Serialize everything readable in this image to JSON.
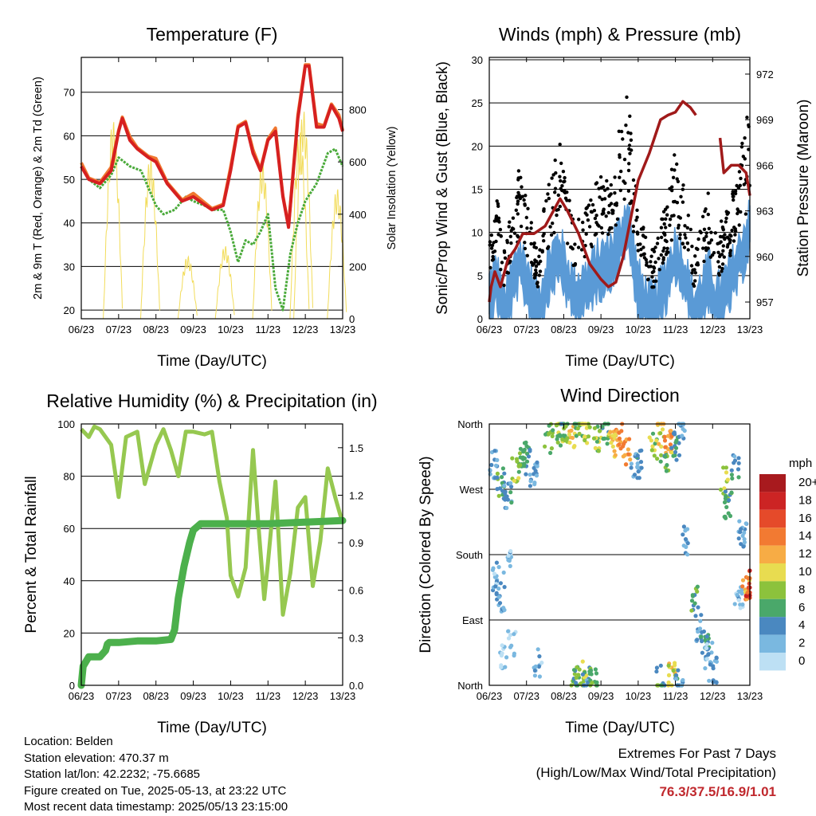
{
  "time_ticks": [
    "06/23",
    "07/23",
    "08/23",
    "09/23",
    "10/23",
    "11/23",
    "12/23",
    "13/23"
  ],
  "x_axis_title": "Time (Day/UTC)",
  "colors": {
    "temp_2m": "#d62020",
    "temp_9m": "#f07830",
    "dewpoint": "#4aaa3a",
    "solar": "#f2dc5a",
    "wind": "#5a9ad6",
    "gust": "#000000",
    "pressure": "#a01a1a",
    "rh": "#96c850",
    "precip": "#4cb04c"
  },
  "chart_data": [
    {
      "id": "temperature",
      "type": "line",
      "title": "Temperature (F)",
      "xlabel": "Time (Day/UTC)",
      "ylabel": "2m & 9m T (Red, Orange) & 2m Td (Green)",
      "y2label": "Solar Insolation (Yellow)",
      "x_ticks": [
        "06/23",
        "07/23",
        "08/23",
        "09/23",
        "10/23",
        "11/23",
        "12/23",
        "13/23"
      ],
      "ylim": [
        18,
        78
      ],
      "y_ticks": [
        20,
        30,
        40,
        50,
        60,
        70
      ],
      "y2lim": [
        0,
        1000
      ],
      "y2_ticks": [
        0,
        200,
        400,
        600,
        800
      ],
      "series": [
        {
          "key": "temp",
          "x": [
            6,
            6.2,
            6.5,
            6.8,
            7,
            7.1,
            7.3,
            7.5,
            7.8,
            8,
            8.3,
            8.7,
            9,
            9.5,
            9.8,
            10,
            10.2,
            10.4,
            10.6,
            10.8,
            11,
            11.2,
            11.4,
            11.55,
            11.8,
            12,
            12.1,
            12.3,
            12.5,
            12.7,
            12.9,
            13
          ],
          "y": [
            53,
            50,
            49,
            52,
            61,
            64,
            59,
            57,
            55,
            54,
            49,
            45,
            46,
            43,
            44,
            52,
            62,
            63,
            56,
            52,
            59,
            61,
            46,
            39,
            64,
            76,
            76,
            62,
            62,
            67,
            64,
            61
          ]
        },
        {
          "key": "dew",
          "x": [
            6,
            6.2,
            6.5,
            6.8,
            7,
            7.3,
            7.6,
            8,
            8.2,
            8.5,
            8.8,
            9,
            9.3,
            9.5,
            9.8,
            10,
            10.2,
            10.4,
            10.6,
            10.8,
            11,
            11.2,
            11.4,
            11.6,
            11.8,
            12,
            12.3,
            12.6,
            12.8,
            13
          ],
          "y": [
            53,
            50,
            48,
            51,
            55,
            53,
            52,
            44,
            42,
            43,
            46,
            45,
            44,
            43,
            43,
            38,
            31,
            36,
            35,
            38,
            42,
            25,
            20,
            33,
            40,
            45,
            49,
            56,
            57,
            53
          ]
        },
        {
          "key": "solar",
          "peaks": [
            6.85,
            7.85,
            8.85,
            9.85,
            10.85,
            11.85,
            12.85
          ],
          "heights": [
            760,
            620,
            240,
            280,
            600,
            720,
            500
          ],
          "extra_peak": [
            11.95,
            800
          ]
        }
      ]
    },
    {
      "id": "winds",
      "type": "scatter",
      "title": "Winds (mph) & Pressure (mb)",
      "xlabel": "Time (Day/UTC)",
      "ylabel": "Sonic/Prop Wind & Gust (Blue, Black)",
      "y2label": "Station Pressure (Maroon)",
      "x_ticks": [
        "06/23",
        "07/23",
        "08/23",
        "09/23",
        "10/23",
        "11/23",
        "12/23",
        "13/23"
      ],
      "ylim": [
        0,
        30
      ],
      "y_ticks": [
        0,
        5,
        10,
        15,
        20,
        25,
        30
      ],
      "y2lim": [
        955.9,
        973.1
      ],
      "y2_ticks": [
        957,
        960,
        963,
        966,
        969,
        972
      ],
      "series": [
        {
          "key": "wind_profile",
          "x": [
            6,
            6.2,
            6.4,
            6.6,
            6.8,
            7,
            7.3,
            7.6,
            7.9,
            8.1,
            8.3,
            8.6,
            8.9,
            9.2,
            9.5,
            9.7,
            9.85,
            10,
            10.2,
            10.4,
            10.6,
            10.8,
            11,
            11.2,
            11.5,
            11.7,
            11.9,
            12.1,
            12.4,
            12.7,
            13
          ],
          "y": [
            4,
            6,
            2,
            5,
            8,
            6,
            2,
            7,
            9,
            6,
            4,
            5,
            7,
            8,
            10,
            13,
            9,
            5,
            3,
            2,
            4,
            6,
            9,
            7,
            2,
            4,
            6,
            3,
            5,
            8,
            12
          ]
        },
        {
          "key": "pressure",
          "x": [
            6,
            6.05,
            6.15,
            6.3,
            6.5,
            6.7,
            6.9,
            7.2,
            7.5,
            7.9,
            8.1,
            8.4,
            8.7,
            9,
            9.2,
            9.4,
            9.6,
            9.8,
            10,
            10.3,
            10.6,
            10.8,
            11,
            11.2,
            11.4,
            11.55
          ],
          "y": [
            957,
            958,
            959,
            958,
            959.8,
            960.5,
            961.5,
            961.5,
            962,
            963.8,
            963,
            961.5,
            959.5,
            958.5,
            958,
            958.3,
            960,
            962.5,
            965,
            966.8,
            969,
            969.3,
            969.5,
            970.2,
            969.8,
            969.3
          ]
        },
        {
          "key": "pressure_2",
          "x": [
            12.2,
            12.3,
            12.5,
            12.7,
            12.9,
            13
          ],
          "y": [
            967.8,
            965.5,
            966,
            966,
            965.5,
            964
          ]
        }
      ]
    },
    {
      "id": "humidity",
      "type": "line",
      "title": "Relative Humidity (%) & Precipitation (in)",
      "xlabel": "Time (Day/UTC)",
      "ylabel": "Percent & Total Rainfall",
      "x_ticks": [
        "06/23",
        "07/23",
        "08/23",
        "09/23",
        "10/23",
        "11/23",
        "12/23",
        "13/23"
      ],
      "ylim": [
        0,
        100
      ],
      "y_ticks": [
        0,
        20,
        40,
        60,
        80,
        100
      ],
      "y2lim": [
        0,
        1.65
      ],
      "y2_ticks": [
        "0.0",
        "0.3",
        "0.6",
        "0.9",
        "1.2",
        "1.5"
      ],
      "series": [
        {
          "key": "rh",
          "x": [
            6,
            6.2,
            6.35,
            6.5,
            6.8,
            7,
            7.2,
            7.5,
            7.7,
            8,
            8.2,
            8.4,
            8.6,
            8.8,
            9,
            9.3,
            9.5,
            9.7,
            9.9,
            10,
            10.2,
            10.4,
            10.6,
            10.75,
            10.9,
            11,
            11.2,
            11.4,
            11.6,
            11.8,
            12,
            12.2,
            12.4,
            12.6,
            12.8,
            13
          ],
          "y": [
            98,
            95,
            99,
            98,
            92,
            72,
            95,
            97,
            77,
            92,
            98,
            90,
            80,
            97,
            97,
            96,
            97,
            78,
            64,
            42,
            34,
            45,
            90,
            60,
            33,
            47,
            78,
            27,
            43,
            68,
            72,
            38,
            55,
            83,
            72,
            62
          ]
        },
        {
          "key": "precip",
          "x": [
            6,
            6.05,
            6.1,
            6.2,
            6.5,
            6.65,
            6.7,
            6.75,
            7,
            7.5,
            8,
            8.4,
            8.5,
            8.6,
            8.75,
            8.9,
            9,
            9.1,
            9.2,
            9.4,
            10,
            11,
            12,
            13
          ],
          "y": [
            0,
            0.12,
            0.14,
            0.18,
            0.18,
            0.22,
            0.26,
            0.27,
            0.27,
            0.28,
            0.28,
            0.29,
            0.35,
            0.55,
            0.75,
            0.9,
            0.98,
            1.0,
            1.02,
            1.02,
            1.02,
            1.02,
            1.03,
            1.04
          ]
        }
      ]
    },
    {
      "id": "wind_direction",
      "type": "scatter",
      "title": "Wind Direction",
      "xlabel": "Time (Day/UTC)",
      "ylabel": "Direction (Colored By Speed)",
      "x_ticks": [
        "06/23",
        "07/23",
        "08/23",
        "09/23",
        "10/23",
        "11/23",
        "12/23",
        "13/23"
      ],
      "y_ticks": [
        "North",
        "East",
        "South",
        "West",
        "North"
      ],
      "ylim": [
        0,
        360
      ],
      "colorbar": {
        "unit": "mph",
        "labels": [
          "20+",
          "18",
          "16",
          "14",
          "12",
          "10",
          "8",
          "6",
          "4",
          "2",
          "0"
        ],
        "colors": [
          "#a81a1e",
          "#cc2424",
          "#e54a2a",
          "#f27a32",
          "#f7ac45",
          "#e8dc50",
          "#8cc23c",
          "#4aa86a",
          "#4a88c0",
          "#7ab8e0",
          "#bde0f4"
        ]
      },
      "series": [
        {
          "key": "clusters",
          "points": [
            [
              6.1,
              305,
              3
            ],
            [
              6.3,
              280,
              6
            ],
            [
              6.5,
              260,
              4
            ],
            [
              6.7,
              300,
              8
            ],
            [
              6.9,
              320,
              7
            ],
            [
              7.0,
              310,
              5
            ],
            [
              7.2,
              290,
              3
            ],
            [
              6.2,
              150,
              2
            ],
            [
              6.3,
              120,
              3
            ],
            [
              6.5,
              170,
              2
            ],
            [
              6.4,
              40,
              1
            ],
            [
              6.6,
              60,
              1
            ],
            [
              7.3,
              30,
              2
            ],
            [
              7.6,
              340,
              7
            ],
            [
              7.9,
              350,
              8
            ],
            [
              8.0,
              355,
              6
            ],
            [
              8.2,
              345,
              10
            ],
            [
              8.4,
              360,
              7
            ],
            [
              8.6,
              352,
              9
            ],
            [
              8.9,
              340,
              8
            ],
            [
              9.1,
              350,
              6
            ],
            [
              9.3,
              330,
              11
            ],
            [
              9.5,
              345,
              13
            ],
            [
              9.7,
              320,
              12
            ],
            [
              9.9,
              300,
              4
            ],
            [
              10.0,
              305,
              3
            ],
            [
              10.4,
              330,
              8
            ],
            [
              10.6,
              348,
              10
            ],
            [
              10.8,
              340,
              12
            ],
            [
              10.7,
              310,
              6
            ],
            [
              11.0,
              330,
              5
            ],
            [
              11.2,
              360,
              3
            ],
            [
              8.3,
              10,
              6
            ],
            [
              8.5,
              15,
              9
            ],
            [
              8.6,
              8,
              4
            ],
            [
              8.8,
              5,
              7
            ],
            [
              10.6,
              8,
              6
            ],
            [
              10.9,
              12,
              10
            ],
            [
              11.1,
              5,
              4
            ],
            [
              11.3,
              200,
              3
            ],
            [
              11.5,
              120,
              6
            ],
            [
              11.6,
              80,
              3
            ],
            [
              11.8,
              60,
              5
            ],
            [
              11.9,
              40,
              2
            ],
            [
              12.0,
              20,
              3
            ],
            [
              12.3,
              280,
              9
            ],
            [
              12.4,
              250,
              6
            ],
            [
              12.6,
              300,
              4
            ],
            [
              12.8,
              210,
              3
            ],
            [
              12.7,
              120,
              2
            ],
            [
              12.9,
              130,
              12
            ],
            [
              13.0,
              140,
              16
            ]
          ]
        }
      ]
    }
  ],
  "station_info": {
    "location": "Location: Belden",
    "elevation": "Station elevation: 470.37 m",
    "latlon": "Station lat/lon: 42.2232; -75.6685",
    "created": "Figure created on Tue, 2025-05-13, at 23:22 UTC",
    "recent": "Most recent data timestamp: 2025/05/13 23:15:00"
  },
  "extremes": {
    "title": "Extremes For Past 7 Days",
    "subtitle": "(High/Low/Max Wind/Total Precipitation)",
    "values": "76.3/37.5/16.9/1.01"
  }
}
